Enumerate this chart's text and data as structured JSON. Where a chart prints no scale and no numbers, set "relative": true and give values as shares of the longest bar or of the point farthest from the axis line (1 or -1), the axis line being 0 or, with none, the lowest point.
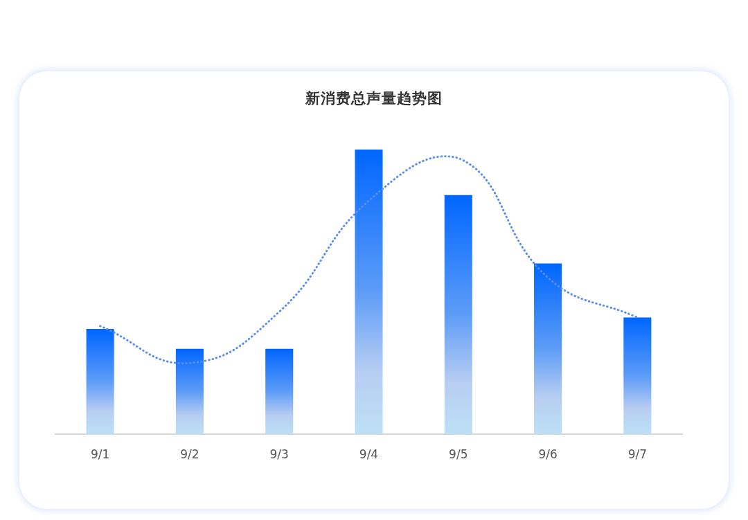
{
  "chart_data": {
    "type": "bar",
    "title": "新消费总声量趋势图",
    "categories": [
      "9/1",
      "9/2",
      "9/3",
      "9/4",
      "9/5",
      "9/6",
      "9/7"
    ],
    "relative": true,
    "series": [
      {
        "color": "#0066ff",
        "values": [
          0.37,
          0.3,
          0.3,
          1,
          0.84,
          0.6,
          0.41
        ]
      },
      {
        "type": "line",
        "color": "#5b8def",
        "values": [
          0.38,
          0.25,
          0.43,
          0.82,
          0.97,
          0.55,
          0.41
        ]
      }
    ],
    "line_style": "dotted",
    "marker": "none",
    "grid": false,
    "legend": false
  }
}
